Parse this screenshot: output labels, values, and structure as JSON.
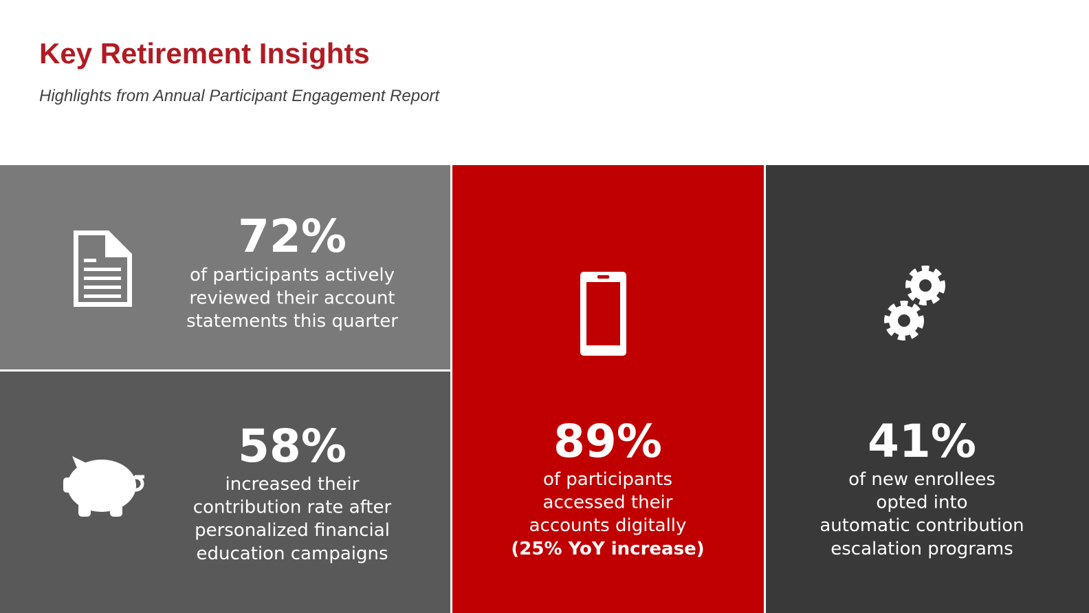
{
  "header": {
    "title": "Key Retirement Insights",
    "subtitle": "Highlights from Annual Participant Engagement Report"
  },
  "panels": [
    {
      "stat": "72%",
      "lines": [
        "of participants actively",
        "reviewed their account",
        "statements this quarter"
      ]
    },
    {
      "stat": "58%",
      "lines": [
        "increased their",
        "contribution rate after",
        "personalized financial",
        "education campaigns"
      ]
    },
    {
      "stat": "89%",
      "lines": [
        "of participants",
        "accessed their",
        "accounts digitally",
        "(25% YoY increase)"
      ]
    },
    {
      "stat": "41%",
      "lines": [
        "of new enrollees",
        "opted into",
        "automatic contribution",
        "escalation programs"
      ]
    }
  ]
}
